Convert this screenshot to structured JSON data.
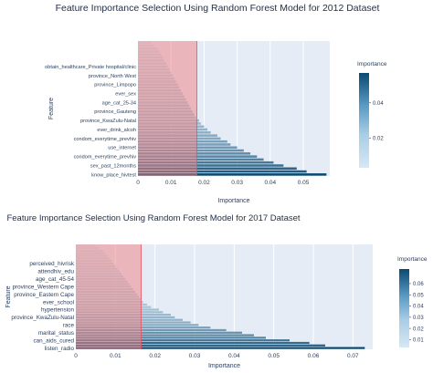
{
  "chart_data": [
    {
      "type": "bar",
      "orientation": "horizontal",
      "title": "Feature Importance Selection Using Random Forest Model for 2012 Dataset",
      "xlabel": "Importance",
      "ylabel": "Feature",
      "xlim": [
        0,
        0.058
      ],
      "xticks": [
        0,
        0.01,
        0.02,
        0.03,
        0.04,
        0.05
      ],
      "xtick_labels": [
        "0",
        "0.01",
        "0.02",
        "0.03",
        "0.04",
        "0.05"
      ],
      "grid": true,
      "colorbar": {
        "title": "Importance",
        "ticks": [
          0.02,
          0.04
        ],
        "tick_labels": [
          "0.02",
          "0.04"
        ],
        "range": [
          0.003,
          0.057
        ]
      },
      "threshold": {
        "value": 0.0178,
        "color": "#f08080"
      },
      "feature_labels": [
        "know_place_hivtest",
        "sex_past_12months",
        "condom_everytime_prevhiv",
        "use_internet",
        "condom_everytime_prevhiv",
        "ever_drink_alcoh",
        "province_KwaZulu-Natal",
        "province_Gauteng",
        "age_cat_25-34",
        "ever_sex",
        "province_Limpopo",
        "province_North West",
        "obtain_healthcare_Private hospital/clinic"
      ],
      "label_positions": [
        0,
        3,
        6,
        9,
        12,
        15,
        18,
        21,
        24,
        27,
        30,
        33,
        36
      ],
      "values": [
        0.057,
        0.051,
        0.048,
        0.044,
        0.041,
        0.038,
        0.036,
        0.034,
        0.032,
        0.03,
        0.028,
        0.027,
        0.025,
        0.024,
        0.022,
        0.021,
        0.02,
        0.019,
        0.0185,
        0.0175,
        0.017,
        0.0165,
        0.016,
        0.0155,
        0.015,
        0.0145,
        0.014,
        0.0135,
        0.013,
        0.0125,
        0.012,
        0.0115,
        0.011,
        0.0105,
        0.01,
        0.0095,
        0.009,
        0.0085,
        0.008,
        0.0075,
        0.007,
        0.0065,
        0.006,
        0.005,
        0.004
      ]
    },
    {
      "type": "bar",
      "orientation": "horizontal",
      "title": "Feature Importance Selection Using Random Forest Model for 2017 Dataset",
      "xlabel": "Importance",
      "ylabel": "Feature",
      "xlim": [
        0,
        0.075
      ],
      "xticks": [
        0,
        0.01,
        0.02,
        0.03,
        0.04,
        0.05,
        0.06,
        0.07
      ],
      "xtick_labels": [
        "0",
        "0.01",
        "0.02",
        "0.03",
        "0.04",
        "0.05",
        "0.06",
        "0.07"
      ],
      "grid": true,
      "colorbar": {
        "title": "Importance",
        "ticks": [
          0.01,
          0.02,
          0.03,
          0.04,
          0.05,
          0.06
        ],
        "tick_labels": [
          "0.01",
          "0.02",
          "0.03",
          "0.04",
          "0.05",
          "0.06"
        ],
        "range": [
          0.003,
          0.073
        ]
      },
      "threshold": {
        "value": 0.0165,
        "color": "#f08080"
      },
      "feature_labels": [
        "listen_radio",
        "can_aids_cured",
        "marital_status",
        "race",
        "province_KwaZulu-Natal",
        "hypertension",
        "ever_school",
        "province_Eastern Cape",
        "province_Western Cape",
        "age_cat_45-54",
        "attendhiv_edu",
        "perceived_hivrisk"
      ],
      "label_positions": [
        0,
        3,
        6,
        9,
        12,
        15,
        18,
        21,
        24,
        27,
        30,
        33
      ],
      "values": [
        0.073,
        0.063,
        0.059,
        0.054,
        0.048,
        0.045,
        0.042,
        0.038,
        0.034,
        0.031,
        0.029,
        0.027,
        0.025,
        0.024,
        0.022,
        0.021,
        0.019,
        0.018,
        0.017,
        0.0165,
        0.016,
        0.0155,
        0.015,
        0.0145,
        0.014,
        0.0135,
        0.013,
        0.0125,
        0.012,
        0.0115,
        0.011,
        0.0105,
        0.01,
        0.0095,
        0.009,
        0.0085,
        0.008,
        0.0075,
        0.007,
        0.006,
        0.005
      ]
    }
  ]
}
